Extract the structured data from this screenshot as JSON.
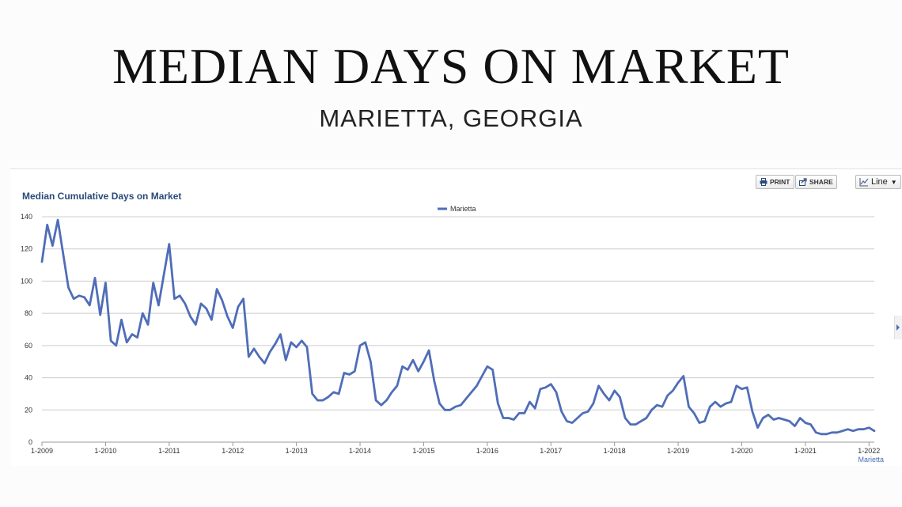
{
  "page": {
    "headline": "MEDIAN DAYS ON MARKET",
    "subheadline": "MARIETTA, GEORGIA"
  },
  "toolbar": {
    "print_label": "PRINT",
    "share_label": "SHARE",
    "chart_type_label": "Line",
    "print_icon": "printer-icon",
    "share_icon": "share-icon",
    "chart_type_icon": "line-chart-icon",
    "dropdown_icon": "caret-down-icon"
  },
  "colors": {
    "series": "#4f6db8",
    "title": "#2a4a7a",
    "grid": "#cccccc"
  },
  "chart_data": {
    "type": "line",
    "title": "Median Cumulative Days on Market",
    "legend": {
      "position": "top-center",
      "entries": [
        "Marietta"
      ]
    },
    "grid": true,
    "ylim": [
      0,
      140
    ],
    "yticks": [
      0,
      20,
      40,
      60,
      80,
      100,
      120,
      140
    ],
    "xlabels": [
      "1-2009",
      "1-2010",
      "1-2011",
      "1-2012",
      "1-2013",
      "1-2014",
      "1-2015",
      "1-2016",
      "1-2017",
      "1-2018",
      "1-2019",
      "1-2020",
      "1-2021",
      "1-2022"
    ],
    "x_start": "1-2009",
    "x_interval": "monthly",
    "end_label": "Marietta",
    "series": [
      {
        "name": "Marietta",
        "values": [
          112,
          135,
          122,
          138,
          117,
          96,
          89,
          91,
          90,
          85,
          102,
          79,
          99,
          63,
          60,
          76,
          62,
          67,
          65,
          80,
          73,
          99,
          85,
          104,
          123,
          89,
          91,
          86,
          78,
          73,
          86,
          83,
          76,
          95,
          88,
          78,
          71,
          84,
          89,
          53,
          58,
          53,
          49,
          56,
          61,
          67,
          51,
          62,
          59,
          63,
          59,
          30,
          26,
          26,
          28,
          31,
          30,
          43,
          42,
          44,
          60,
          62,
          50,
          26,
          23,
          26,
          31,
          35,
          47,
          45,
          51,
          44,
          50,
          57,
          38,
          24,
          20,
          20,
          22,
          23,
          27,
          31,
          35,
          41,
          47,
          45,
          24,
          15,
          15,
          14,
          18,
          18,
          25,
          21,
          33,
          34,
          36,
          31,
          19,
          13,
          12,
          15,
          18,
          19,
          24,
          35,
          30,
          26,
          32,
          28,
          15,
          11,
          11,
          13,
          15,
          20,
          23,
          22,
          29,
          32,
          37,
          41,
          22,
          18,
          12,
          13,
          22,
          25,
          22,
          24,
          25,
          35,
          33,
          34,
          19,
          9,
          15,
          17,
          14,
          15,
          14,
          13,
          10,
          15,
          12,
          11,
          6,
          5,
          5,
          6,
          6,
          7,
          8,
          7,
          8,
          8,
          9,
          7
        ]
      }
    ]
  }
}
